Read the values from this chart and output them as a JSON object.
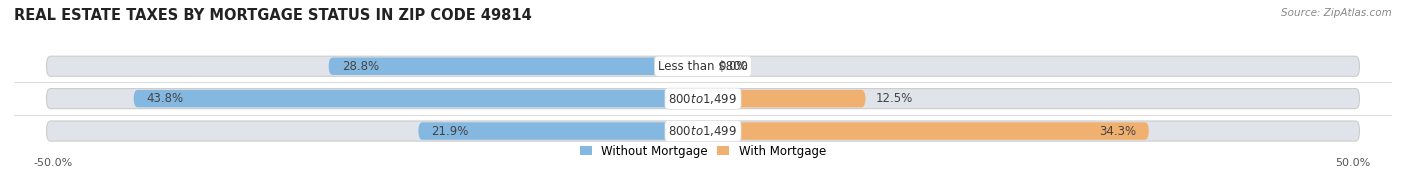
{
  "title": "REAL ESTATE TAXES BY MORTGAGE STATUS IN ZIP CODE 49814",
  "source": "Source: ZipAtlas.com",
  "categories": [
    "Less than $800",
    "$800 to $1,499",
    "$800 to $1,499"
  ],
  "without_mortgage": [
    28.8,
    43.8,
    21.9
  ],
  "with_mortgage": [
    0.0,
    12.5,
    34.3
  ],
  "color_without": "#85b8e0",
  "color_without_dark": "#5a9bc4",
  "color_with": "#f0b070",
  "color_with_dark": "#e8943a",
  "color_bg_bar": "#e0e4ea",
  "axis_limit": 50.0,
  "legend_without": "Without Mortgage",
  "legend_with": "With Mortgage",
  "title_fontsize": 10.5,
  "source_fontsize": 7.5,
  "label_fontsize": 8.5,
  "axis_label_fontsize": 8.0,
  "category_fontsize": 8.5
}
